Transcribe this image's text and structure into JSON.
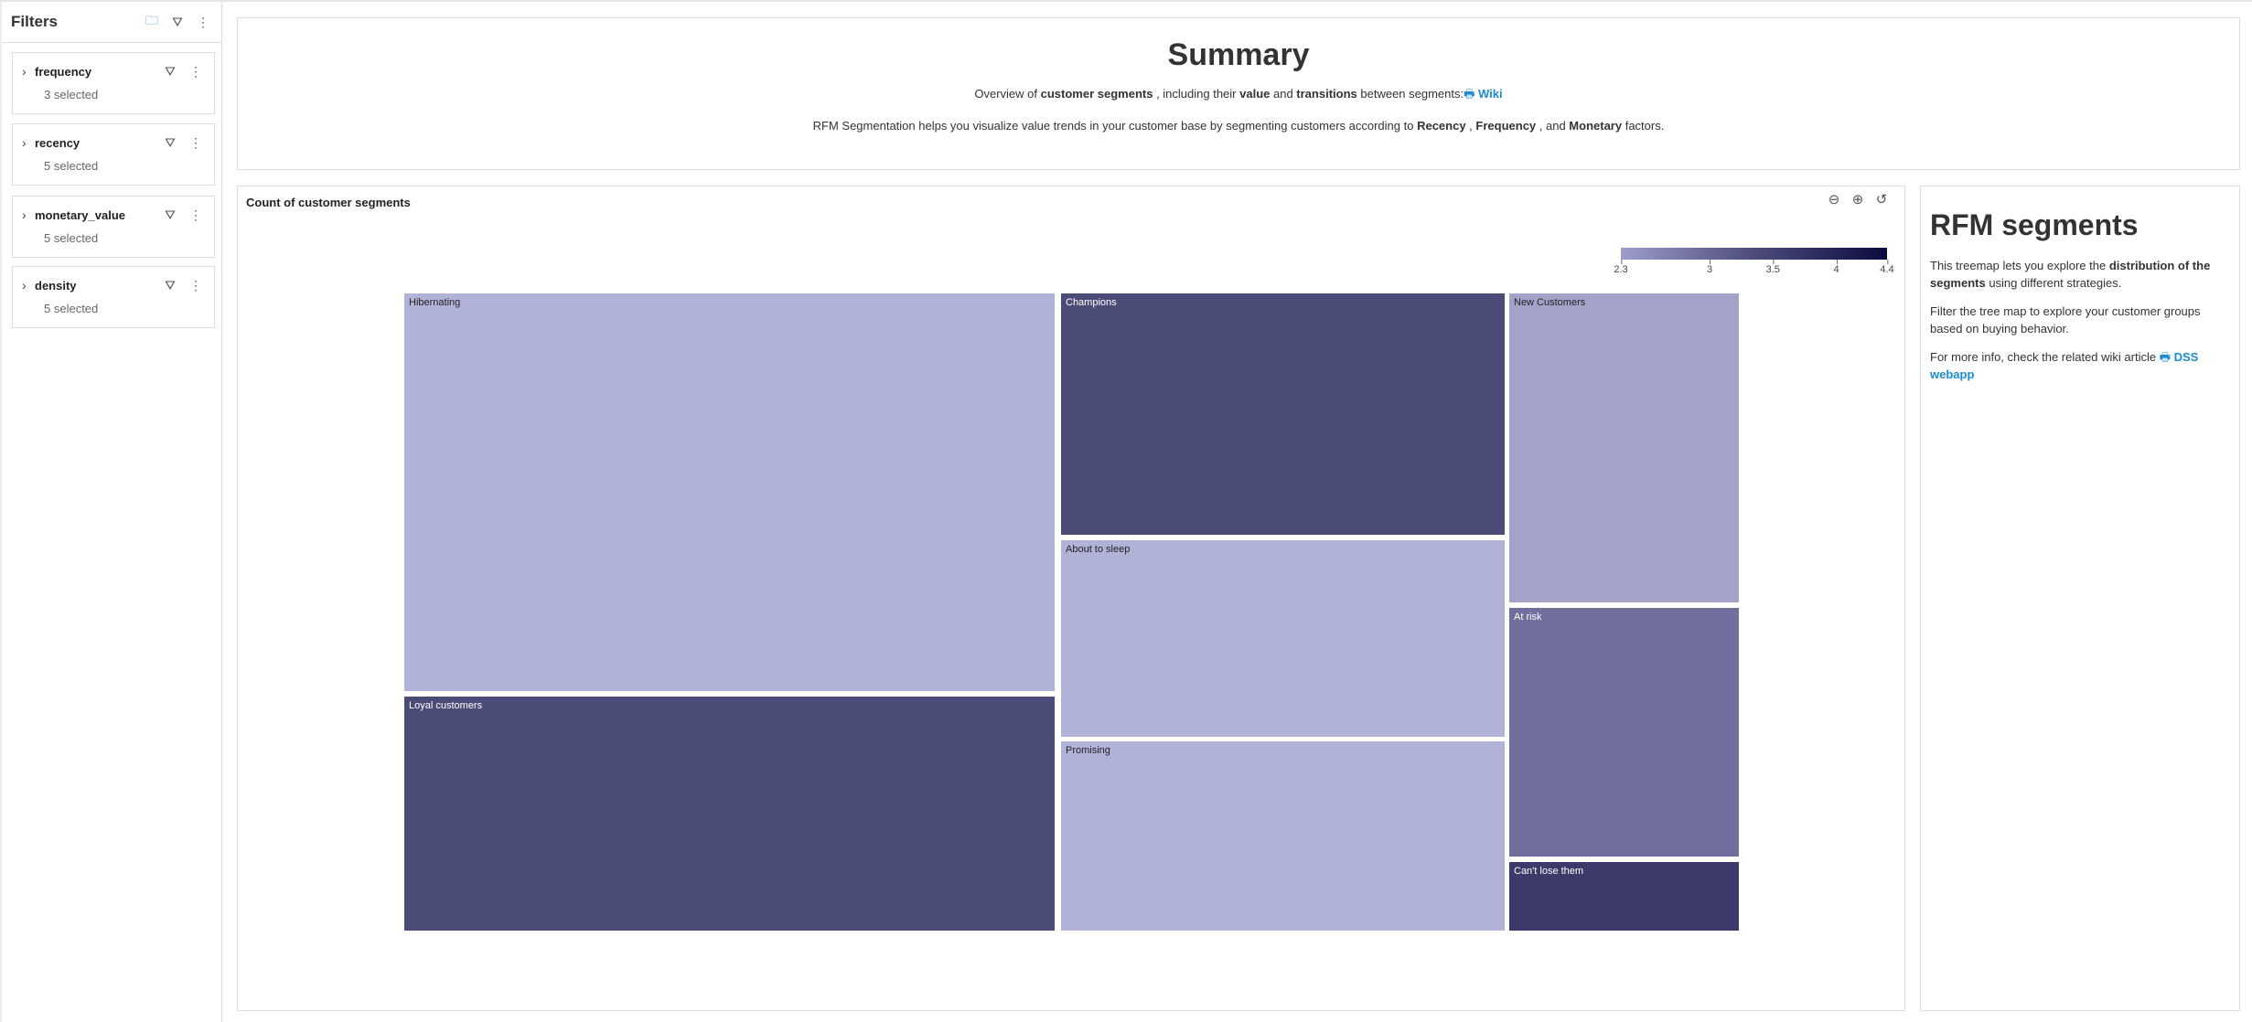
{
  "sidebar": {
    "title": "Filters",
    "filters": [
      {
        "name": "frequency",
        "status": "3 selected"
      },
      {
        "name": "recency",
        "status": "5 selected"
      },
      {
        "name": "monetary_value",
        "status": "5 selected"
      },
      {
        "name": "density",
        "status": "5 selected"
      }
    ]
  },
  "summary": {
    "title": "Summary",
    "line1": {
      "t1": "Overview of ",
      "b1": "customer segments",
      "t2": " , including their ",
      "b2": "value",
      "t3": " and ",
      "b3": "transitions",
      "t4": " between segments:",
      "link": "Wiki"
    },
    "line2": {
      "t1": "RFM Segmentation helps you visualize value trends in your customer base by segmenting customers according to ",
      "b1": "Recency",
      "t2": " , ",
      "b2": "Frequency",
      "t3": " , and ",
      "b3": "Monetary",
      "t4": " factors."
    }
  },
  "chart": {
    "title": "Count of customer segments"
  },
  "chart_data": {
    "type": "treemap",
    "title": "Count of customer segments",
    "color_scale": {
      "min": 2.3,
      "max": 4.4,
      "ticks": [
        "2.3",
        "3",
        "3.5",
        "4",
        "4.4"
      ],
      "colors": [
        "#9d9dcb",
        "#0b0a3e"
      ]
    },
    "segments": [
      {
        "label": "Hibernating",
        "share_pct": 31.0,
        "color": "#b1b2d7"
      },
      {
        "label": "Loyal customers",
        "share_pct": 18.3,
        "color": "#4b4b78"
      },
      {
        "label": "Champions",
        "share_pct": 12.9,
        "color": "#4b4b78"
      },
      {
        "label": "About to sleep",
        "share_pct": 10.5,
        "color": "#b1b2d7"
      },
      {
        "label": "Promising",
        "share_pct": 10.0,
        "color": "#b1b2d7"
      },
      {
        "label": "New Customers",
        "share_pct": 8.5,
        "color": "#a3a3c9"
      },
      {
        "label": "At risk",
        "share_pct": 6.9,
        "color": "#706e9c"
      },
      {
        "label": "Can't lose them",
        "share_pct": 1.9,
        "color": "#3c3a6a"
      }
    ]
  },
  "rfm": {
    "title": "RFM segments",
    "p1a": "This treemap lets you explore the ",
    "p1b": "distribution of the segments",
    "p1c": " using different strategies.",
    "p2": "Filter the tree map to explore your customer groups based on buying behavior.",
    "p3": "For more info, check the related wiki article ",
    "p3link": "DSS webapp"
  }
}
